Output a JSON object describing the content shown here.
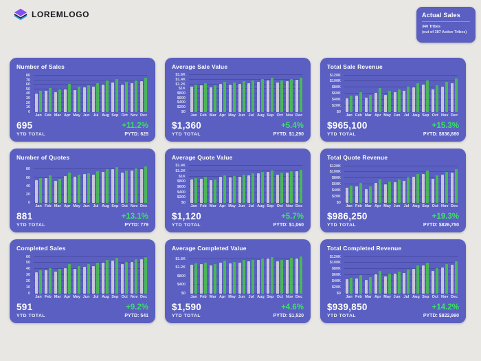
{
  "header": {
    "logo_text": "LOREMLOGO"
  },
  "actual_sales": {
    "title": "Actual Sales",
    "line1": "340 Tribes",
    "line2": "(out of 387 Active Tribes)"
  },
  "colors": {
    "page_bg": "#e9e7e4",
    "card_bg": "#5a5fc1",
    "bar_prev": "#c8c5d9",
    "bar_cur": "#4ab65a",
    "pct_green": "#3ce266",
    "logo_purple": "#8450f0",
    "logo_blue": "#33a3f6"
  },
  "cards": [
    {
      "ytd_value": "695",
      "ytd_label": "YTD TOTAL",
      "pct": "+11.2%",
      "pytd": "PYTD: 625"
    },
    {
      "ytd_value": "$1,360",
      "ytd_label": "YTD TOTAL",
      "pct": "+5.4%",
      "pytd": "PYTD: $1,290"
    },
    {
      "ytd_value": "$965,100",
      "ytd_label": "YTD TOTAL",
      "pct": "+15.3%",
      "pytd": "PYTD: $836,880"
    },
    {
      "ytd_value": "881",
      "ytd_label": "YTD TOTAL",
      "pct": "+13.1%",
      "pytd": "PYTD: 779"
    },
    {
      "ytd_value": "$1,120",
      "ytd_label": "YTD TOTAL",
      "pct": "+5.7%",
      "pytd": "PYTD: $1,060"
    },
    {
      "ytd_value": "$986,250",
      "ytd_label": "YTD TOTAL",
      "pct": "+19.3%",
      "pytd": "PYTD: $826,750"
    },
    {
      "ytd_value": "591",
      "ytd_label": "YTD TOTAL",
      "pct": "+9.2%",
      "pytd": "PYTD: 541"
    },
    {
      "ytd_value": "$1,590",
      "ytd_label": "YTD TOTAL",
      "pct": "+4.6%",
      "pytd": "PYTD: $1,520"
    },
    {
      "ytd_value": "$939,850",
      "ytd_label": "YTD TOTAL",
      "pct": "+14.2%",
      "pytd": "PYTD: $822,990"
    }
  ],
  "chart_data": [
    {
      "type": "bar",
      "title": "Number of Sales",
      "categories": [
        "Jan",
        "Feb",
        "Mar",
        "Apr",
        "May",
        "Jun",
        "Jul",
        "Aug",
        "Sep",
        "Oct",
        "Nov",
        "Dec"
      ],
      "series": [
        {
          "name": "PYTD",
          "values": [
            40,
            46,
            43,
            50,
            48,
            54,
            56,
            60,
            65,
            60,
            64,
            68
          ]
        },
        {
          "name": "YTD",
          "values": [
            46,
            53,
            49,
            62,
            56,
            59,
            63,
            69,
            73,
            66,
            70,
            76
          ]
        }
      ],
      "ylim": [
        0,
        86
      ],
      "grid": true,
      "legend": "none",
      "tick_values": [
        0,
        10,
        20,
        30,
        40,
        50,
        60,
        70,
        80
      ],
      "tick_labels": [
        "0",
        "10",
        "20",
        "30",
        "40",
        "50",
        "60",
        "70",
        "80"
      ]
    },
    {
      "type": "bar",
      "title": "Average Sale Value",
      "categories": [
        "Jan",
        "Feb",
        "Mar",
        "Apr",
        "May",
        "Jun",
        "Jul",
        "Aug",
        "Sep",
        "Oct",
        "Nov",
        "Dec"
      ],
      "series": [
        {
          "name": "PYTD",
          "values": [
            1100,
            1160,
            1060,
            1210,
            1180,
            1230,
            1260,
            1310,
            1360,
            1290,
            1330,
            1390
          ]
        },
        {
          "name": "YTD",
          "values": [
            1190,
            1260,
            1150,
            1300,
            1270,
            1330,
            1360,
            1430,
            1480,
            1380,
            1440,
            1500
          ]
        }
      ],
      "ylim": [
        0,
        1700
      ],
      "grid": true,
      "legend": "none",
      "tick_values": [
        0,
        200,
        400,
        600,
        800,
        1000,
        1200,
        1400,
        1600
      ],
      "tick_labels": [
        "$0",
        "$200",
        "$400",
        "$600",
        "$800",
        "$1K",
        "$1.2K",
        "$1.4K",
        "$1.6K"
      ]
    },
    {
      "type": "bar",
      "title": "Total Sale Revenue",
      "categories": [
        "Jan",
        "Feb",
        "Mar",
        "Apr",
        "May",
        "Jun",
        "Jul",
        "Aug",
        "Sep",
        "Oct",
        "Nov",
        "Dec"
      ],
      "series": [
        {
          "name": "PYTD",
          "values": [
            44000,
            53000,
            47000,
            62000,
            57000,
            65000,
            70000,
            80000,
            90000,
            75000,
            84000,
            95000
          ]
        },
        {
          "name": "YTD",
          "values": [
            53000,
            65000,
            55000,
            78000,
            70000,
            75000,
            82000,
            94000,
            104000,
            88000,
            98000,
            110000
          ]
        }
      ],
      "ylim": [
        0,
        128000
      ],
      "grid": true,
      "legend": "none",
      "tick_values": [
        0,
        20000,
        40000,
        60000,
        80000,
        100000,
        120000
      ],
      "tick_labels": [
        "$0",
        "$20K",
        "$40K",
        "$60K",
        "$80K",
        "$100K",
        "$120K"
      ]
    },
    {
      "type": "bar",
      "title": "Number of Quotes",
      "categories": [
        "Jan",
        "Feb",
        "Mar",
        "Apr",
        "May",
        "Jun",
        "Jul",
        "Aug",
        "Sep",
        "Oct",
        "Nov",
        "Dec"
      ],
      "series": [
        {
          "name": "PYTD",
          "values": [
            55,
            60,
            52,
            65,
            62,
            69,
            68,
            75,
            80,
            72,
            78,
            81
          ]
        },
        {
          "name": "YTD",
          "values": [
            60,
            66,
            58,
            72,
            68,
            71,
            76,
            81,
            86,
            78,
            83,
            88
          ]
        }
      ],
      "ylim": [
        0,
        94
      ],
      "grid": true,
      "legend": "none",
      "tick_values": [
        0,
        20,
        40,
        60,
        80
      ],
      "tick_labels": [
        "0",
        "20",
        "40",
        "60",
        "80"
      ]
    },
    {
      "type": "bar",
      "title": "Average Quote Value",
      "categories": [
        "Jan",
        "Feb",
        "Mar",
        "Apr",
        "May",
        "Jun",
        "Jul",
        "Aug",
        "Sep",
        "Oct",
        "Nov",
        "Dec"
      ],
      "series": [
        {
          "name": "PYTD",
          "values": [
            880,
            920,
            870,
            990,
            970,
            1000,
            1050,
            1120,
            1180,
            1080,
            1150,
            1200
          ]
        },
        {
          "name": "YTD",
          "values": [
            950,
            980,
            900,
            1040,
            1010,
            1070,
            1120,
            1180,
            1240,
            1150,
            1210,
            1260
          ]
        }
      ],
      "ylim": [
        0,
        1490
      ],
      "grid": true,
      "legend": "none",
      "tick_values": [
        0,
        200,
        400,
        600,
        800,
        1000,
        1200,
        1400
      ],
      "tick_labels": [
        "$0",
        "$200",
        "$400",
        "$600",
        "$800",
        "$1K",
        "$1.2K",
        "$1.4K"
      ]
    },
    {
      "type": "bar",
      "title": "Total Quote Revenue",
      "categories": [
        "Jan",
        "Feb",
        "Mar",
        "Apr",
        "May",
        "Jun",
        "Jul",
        "Aug",
        "Sep",
        "Oct",
        "Nov",
        "Dec"
      ],
      "series": [
        {
          "name": "PYTD",
          "values": [
            50000,
            53000,
            45000,
            65000,
            60000,
            68000,
            72000,
            86000,
            95000,
            78000,
            92000,
            98000
          ]
        },
        {
          "name": "YTD",
          "values": [
            57000,
            64000,
            53000,
            76000,
            70000,
            76000,
            84000,
            94000,
            105000,
            90000,
            100000,
            110000
          ]
        }
      ],
      "ylim": [
        0,
        128000
      ],
      "grid": true,
      "legend": "none",
      "tick_values": [
        0,
        20000,
        40000,
        60000,
        80000,
        100000,
        120000
      ],
      "tick_labels": [
        "$0",
        "$20K",
        "$40K",
        "$60K",
        "$80K",
        "$100K",
        "$120K"
      ]
    },
    {
      "type": "bar",
      "title": "Completed Sales",
      "categories": [
        "Jan",
        "Feb",
        "Mar",
        "Apr",
        "May",
        "Jun",
        "Jul",
        "Aug",
        "Sep",
        "Oct",
        "Nov",
        "Dec"
      ],
      "series": [
        {
          "name": "PYTD",
          "values": [
            35,
            38,
            36,
            41,
            40,
            44,
            45,
            50,
            54,
            48,
            52,
            56
          ]
        },
        {
          "name": "YTD",
          "values": [
            38,
            42,
            40,
            48,
            45,
            48,
            50,
            55,
            58,
            52,
            56,
            60
          ]
        }
      ],
      "ylim": [
        0,
        64
      ],
      "grid": true,
      "legend": "none",
      "tick_values": [
        0,
        10,
        20,
        30,
        40,
        50,
        60
      ],
      "tick_labels": [
        "0",
        "10",
        "20",
        "30",
        "40",
        "50",
        "60"
      ]
    },
    {
      "type": "bar",
      "title": "Average Completed Value",
      "categories": [
        "Jan",
        "Feb",
        "Mar",
        "Apr",
        "May",
        "Jun",
        "Jul",
        "Aug",
        "Sep",
        "Oct",
        "Nov",
        "Dec"
      ],
      "series": [
        {
          "name": "PYTD",
          "values": [
            1350,
            1380,
            1300,
            1450,
            1420,
            1450,
            1500,
            1560,
            1620,
            1500,
            1560,
            1640
          ]
        },
        {
          "name": "YTD",
          "values": [
            1420,
            1450,
            1380,
            1520,
            1480,
            1560,
            1580,
            1640,
            1700,
            1580,
            1650,
            1720
          ]
        }
      ],
      "ylim": [
        0,
        1820
      ],
      "grid": true,
      "legend": "none",
      "tick_values": [
        0,
        400,
        800,
        1200,
        1600
      ],
      "tick_labels": [
        "$0",
        "$400",
        "$800",
        "$1.2K",
        "$1.6K"
      ]
    },
    {
      "type": "bar",
      "title": "Total Completed Revenue",
      "categories": [
        "Jan",
        "Feb",
        "Mar",
        "Apr",
        "May",
        "Jun",
        "Jul",
        "Aug",
        "Sep",
        "Oct",
        "Nov",
        "Dec"
      ],
      "series": [
        {
          "name": "PYTD",
          "values": [
            46000,
            50000,
            44000,
            62000,
            55000,
            64000,
            68000,
            80000,
            92000,
            74000,
            86000,
            94000
          ]
        },
        {
          "name": "YTD",
          "values": [
            52000,
            61000,
            53000,
            73000,
            66000,
            72000,
            79000,
            92000,
            101000,
            84000,
            96000,
            106000
          ]
        }
      ],
      "ylim": [
        0,
        128000
      ],
      "grid": true,
      "legend": "none",
      "tick_values": [
        0,
        20000,
        40000,
        60000,
        80000,
        100000,
        120000
      ],
      "tick_labels": [
        "$0",
        "$20K",
        "$40K",
        "$60K",
        "$80K",
        "$100K",
        "$120K"
      ]
    }
  ]
}
